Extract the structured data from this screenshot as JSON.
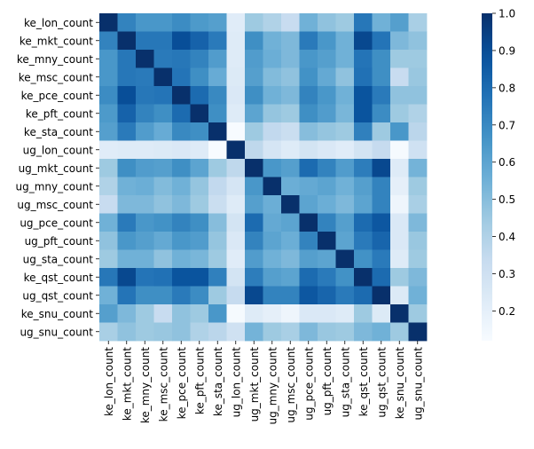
{
  "chart_data": {
    "type": "heatmap",
    "title": "",
    "xlabel": "",
    "ylabel": "",
    "row_labels": [
      "ke_lon_count",
      "ke_mkt_count",
      "ke_mny_count",
      "ke_msc_count",
      "ke_pce_count",
      "ke_pft_count",
      "ke_sta_count",
      "ug_lon_count",
      "ug_mkt_count",
      "ug_mny_count",
      "ug_msc_count",
      "ug_pce_count",
      "ug_pft_count",
      "ug_sta_count",
      "ke_qst_count",
      "ug_qst_count",
      "ke_snu_count",
      "ug_snu_count"
    ],
    "col_labels": [
      "ke_lon_count",
      "ke_mkt_count",
      "ke_mny_count",
      "ke_msc_count",
      "ke_pce_count",
      "ke_pft_count",
      "ke_sta_count",
      "ug_lon_count",
      "ug_mkt_count",
      "ug_mny_count",
      "ug_msc_count",
      "ug_pce_count",
      "ug_pft_count",
      "ug_sta_count",
      "ke_qst_count",
      "ug_qst_count",
      "ke_snu_count",
      "ug_snu_count"
    ],
    "values": [
      [
        1.0,
        0.72,
        0.65,
        0.65,
        0.69,
        0.64,
        0.62,
        0.22,
        0.45,
        0.4,
        0.33,
        0.55,
        0.48,
        0.45,
        0.76,
        0.55,
        0.62,
        0.42
      ],
      [
        0.72,
        1.0,
        0.76,
        0.76,
        0.9,
        0.83,
        0.75,
        0.23,
        0.68,
        0.55,
        0.52,
        0.75,
        0.65,
        0.55,
        0.92,
        0.77,
        0.52,
        0.48
      ],
      [
        0.65,
        0.76,
        1.0,
        0.75,
        0.76,
        0.72,
        0.63,
        0.23,
        0.63,
        0.56,
        0.52,
        0.65,
        0.62,
        0.55,
        0.77,
        0.68,
        0.45,
        0.45
      ],
      [
        0.65,
        0.76,
        0.75,
        1.0,
        0.77,
        0.68,
        0.57,
        0.24,
        0.62,
        0.51,
        0.48,
        0.67,
        0.58,
        0.48,
        0.78,
        0.68,
        0.33,
        0.46
      ],
      [
        0.69,
        0.9,
        0.76,
        0.77,
        1.0,
        0.8,
        0.7,
        0.25,
        0.68,
        0.55,
        0.52,
        0.72,
        0.65,
        0.55,
        0.88,
        0.75,
        0.48,
        0.48
      ],
      [
        0.64,
        0.83,
        0.72,
        0.68,
        0.8,
        1.0,
        0.68,
        0.23,
        0.6,
        0.47,
        0.45,
        0.68,
        0.63,
        0.53,
        0.88,
        0.69,
        0.45,
        0.4
      ],
      [
        0.62,
        0.75,
        0.63,
        0.57,
        0.7,
        0.68,
        1.0,
        0.12,
        0.45,
        0.35,
        0.32,
        0.5,
        0.47,
        0.45,
        0.73,
        0.45,
        0.65,
        0.37
      ],
      [
        0.22,
        0.23,
        0.23,
        0.24,
        0.25,
        0.23,
        0.12,
        1.0,
        0.36,
        0.27,
        0.23,
        0.28,
        0.25,
        0.22,
        0.28,
        0.34,
        0.13,
        0.3
      ],
      [
        0.45,
        0.68,
        0.63,
        0.62,
        0.68,
        0.6,
        0.45,
        0.36,
        1.0,
        0.65,
        0.62,
        0.8,
        0.72,
        0.63,
        0.74,
        0.92,
        0.23,
        0.54
      ],
      [
        0.4,
        0.55,
        0.56,
        0.51,
        0.55,
        0.47,
        0.35,
        0.27,
        0.65,
        1.0,
        0.56,
        0.58,
        0.6,
        0.55,
        0.62,
        0.72,
        0.2,
        0.45
      ],
      [
        0.33,
        0.52,
        0.52,
        0.48,
        0.52,
        0.45,
        0.32,
        0.23,
        0.62,
        0.56,
        1.0,
        0.6,
        0.56,
        0.52,
        0.6,
        0.72,
        0.16,
        0.42
      ],
      [
        0.55,
        0.75,
        0.65,
        0.67,
        0.72,
        0.68,
        0.5,
        0.28,
        0.8,
        0.58,
        0.6,
        1.0,
        0.72,
        0.62,
        0.8,
        0.87,
        0.25,
        0.52
      ],
      [
        0.48,
        0.65,
        0.62,
        0.58,
        0.65,
        0.63,
        0.47,
        0.25,
        0.72,
        0.6,
        0.56,
        0.72,
        1.0,
        0.6,
        0.75,
        0.82,
        0.25,
        0.46
      ],
      [
        0.45,
        0.55,
        0.55,
        0.48,
        0.55,
        0.53,
        0.45,
        0.22,
        0.63,
        0.55,
        0.52,
        0.62,
        0.6,
        1.0,
        0.67,
        0.75,
        0.23,
        0.45
      ],
      [
        0.76,
        0.92,
        0.77,
        0.78,
        0.88,
        0.88,
        0.73,
        0.28,
        0.74,
        0.62,
        0.6,
        0.8,
        0.75,
        0.67,
        1.0,
        0.8,
        0.45,
        0.52
      ],
      [
        0.55,
        0.77,
        0.68,
        0.68,
        0.75,
        0.69,
        0.45,
        0.34,
        0.92,
        0.72,
        0.72,
        0.87,
        0.82,
        0.75,
        0.8,
        1.0,
        0.24,
        0.55
      ],
      [
        0.62,
        0.52,
        0.45,
        0.33,
        0.48,
        0.45,
        0.65,
        0.13,
        0.23,
        0.2,
        0.16,
        0.25,
        0.25,
        0.23,
        0.45,
        0.24,
        1.0,
        0.45
      ],
      [
        0.42,
        0.48,
        0.45,
        0.46,
        0.48,
        0.4,
        0.37,
        0.3,
        0.54,
        0.45,
        0.42,
        0.52,
        0.46,
        0.45,
        0.52,
        0.55,
        0.45,
        1.0
      ]
    ],
    "colormap": "Blues",
    "colorbar": {
      "min": 0.12,
      "max": 1.0,
      "ticks": [
        0.2,
        0.3,
        0.4,
        0.5,
        0.6,
        0.7,
        0.8,
        0.9,
        1.0
      ],
      "tick_labels": [
        "0.2",
        "0.3",
        "0.4",
        "0.5",
        "0.6",
        "0.7",
        "0.8",
        "0.9",
        "1.0"
      ]
    }
  }
}
